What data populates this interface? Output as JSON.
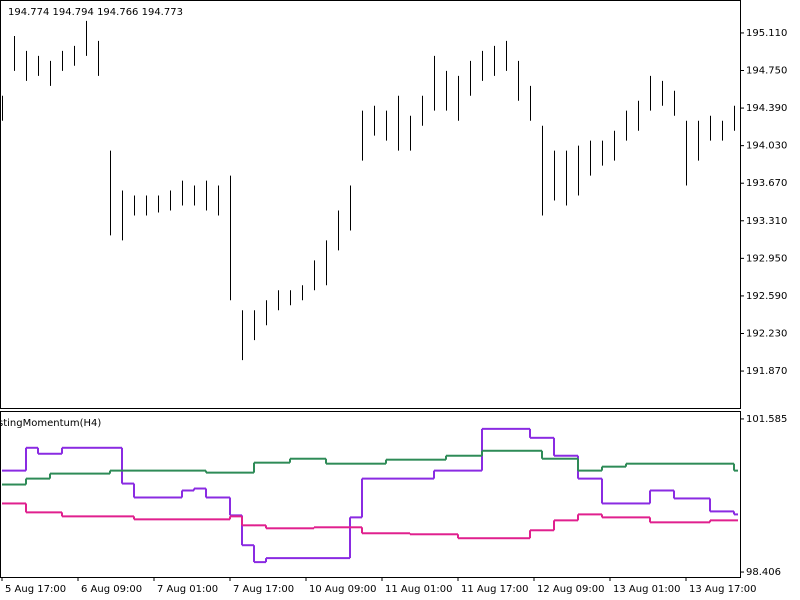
{
  "chart_data": [
    {
      "type": "bar",
      "title": "194.774 194.794 194.766 194.773",
      "color": "#000000",
      "ylim": [
        191.516,
        195.416
      ],
      "yticks": [
        {
          "value": 195.11,
          "label": "195.110"
        },
        {
          "value": 194.75,
          "label": "194.750"
        },
        {
          "value": 194.39,
          "label": "194.390"
        },
        {
          "value": 194.03,
          "label": "194.030"
        },
        {
          "value": 193.67,
          "label": "193.670"
        },
        {
          "value": 193.31,
          "label": "193.310"
        },
        {
          "value": 192.95,
          "label": "192.950"
        },
        {
          "value": 192.59,
          "label": "192.590"
        },
        {
          "value": 192.23,
          "label": "192.230"
        },
        {
          "value": 191.87,
          "label": "191.870"
        }
      ],
      "high": [
        194.508,
        195.081,
        194.938,
        194.89,
        194.842,
        194.938,
        194.986,
        195.225,
        195.034,
        193.982,
        193.6,
        193.552,
        193.552,
        193.552,
        193.6,
        193.695,
        193.648,
        193.695,
        193.648,
        193.743,
        192.453,
        192.453,
        192.548,
        192.644,
        192.644,
        192.692,
        192.931,
        193.122,
        193.409,
        193.648,
        194.365,
        194.412,
        194.365,
        194.508,
        194.317,
        194.508,
        194.89,
        194.747,
        194.699,
        194.842,
        194.938,
        194.986,
        195.034,
        194.842,
        194.603,
        194.221,
        193.982,
        193.982,
        194.03,
        194.078,
        194.078,
        194.173,
        194.365,
        194.46,
        194.699,
        194.651,
        194.556,
        194.269,
        194.269,
        194.317,
        194.269,
        194.412
      ],
      "low": [
        194.269,
        194.747,
        194.651,
        194.699,
        194.603,
        194.747,
        194.795,
        194.89,
        194.699,
        193.17,
        193.122,
        193.361,
        193.361,
        193.389,
        193.409,
        193.456,
        193.456,
        193.409,
        193.361,
        192.548,
        191.975,
        192.166,
        192.309,
        192.453,
        192.501,
        192.548,
        192.644,
        192.692,
        193.026,
        193.217,
        193.887,
        194.126,
        194.078,
        193.982,
        193.982,
        194.221,
        194.365,
        194.365,
        194.269,
        194.508,
        194.651,
        194.699,
        194.747,
        194.46,
        194.269,
        193.361,
        193.504,
        193.456,
        193.552,
        193.743,
        193.839,
        193.887,
        194.078,
        194.173,
        194.365,
        194.412,
        194.317,
        193.648,
        193.887,
        194.078,
        194.078,
        194.173
      ]
    },
    {
      "type": "step",
      "title": "stingMomentum(H4)",
      "ylim": [
        98.303,
        101.729
      ],
      "yticks": [
        101.585,
        98.406
      ],
      "time_labels": [
        "5 Aug 17:00",
        "6 Aug 09:00",
        "7 Aug 01:00",
        "7 Aug 17:00",
        "10 Aug 09:00",
        "11 Aug 01:00",
        "11 Aug 17:00",
        "12 Aug 09:00",
        "13 Aug 01:00",
        "13 Aug 17:00"
      ],
      "series": [
        {
          "color": "#8a2be2",
          "values": [
            100.512,
            100.512,
            100.986,
            100.862,
            100.862,
            100.986,
            100.986,
            100.986,
            100.986,
            100.986,
            100.243,
            99.954,
            99.954,
            99.954,
            99.954,
            100.099,
            100.14,
            99.954,
            99.954,
            99.583,
            98.963,
            98.612,
            98.695,
            98.695,
            98.695,
            98.695,
            98.695,
            98.695,
            98.695,
            99.541,
            100.346,
            100.346,
            100.346,
            100.346,
            100.346,
            100.346,
            100.512,
            100.512,
            100.512,
            100.512,
            101.379,
            101.379,
            101.379,
            101.379,
            101.193,
            101.193,
            100.821,
            100.821,
            100.346,
            100.346,
            99.83,
            99.83,
            99.83,
            99.83,
            100.099,
            100.099,
            99.934,
            99.934,
            99.934,
            99.665,
            99.665,
            99.603
          ]
        },
        {
          "color": "#2e8b57",
          "values": [
            100.223,
            100.223,
            100.346,
            100.346,
            100.45,
            100.45,
            100.45,
            100.45,
            100.45,
            100.512,
            100.512,
            100.512,
            100.512,
            100.512,
            100.512,
            100.512,
            100.512,
            100.47,
            100.47,
            100.47,
            100.47,
            100.677,
            100.677,
            100.677,
            100.759,
            100.759,
            100.759,
            100.656,
            100.656,
            100.656,
            100.656,
            100.656,
            100.739,
            100.739,
            100.739,
            100.739,
            100.739,
            100.821,
            100.821,
            100.821,
            100.924,
            100.924,
            100.924,
            100.924,
            100.924,
            100.759,
            100.759,
            100.759,
            100.512,
            100.512,
            100.594,
            100.594,
            100.656,
            100.656,
            100.656,
            100.656,
            100.656,
            100.656,
            100.656,
            100.656,
            100.656,
            100.512
          ]
        },
        {
          "color": "#e0208e",
          "values": [
            99.83,
            99.83,
            99.645,
            99.645,
            99.645,
            99.562,
            99.562,
            99.562,
            99.562,
            99.562,
            99.562,
            99.5,
            99.5,
            99.5,
            99.5,
            99.5,
            99.5,
            99.5,
            99.5,
            99.562,
            99.376,
            99.376,
            99.314,
            99.314,
            99.314,
            99.314,
            99.335,
            99.335,
            99.335,
            99.335,
            99.211,
            99.211,
            99.211,
            99.211,
            99.19,
            99.19,
            99.19,
            99.19,
            99.108,
            99.108,
            99.108,
            99.108,
            99.108,
            99.108,
            99.273,
            99.273,
            99.479,
            99.479,
            99.603,
            99.603,
            99.541,
            99.541,
            99.541,
            99.541,
            99.438,
            99.438,
            99.438,
            99.438,
            99.438,
            99.479,
            99.479,
            99.479
          ]
        }
      ]
    }
  ]
}
